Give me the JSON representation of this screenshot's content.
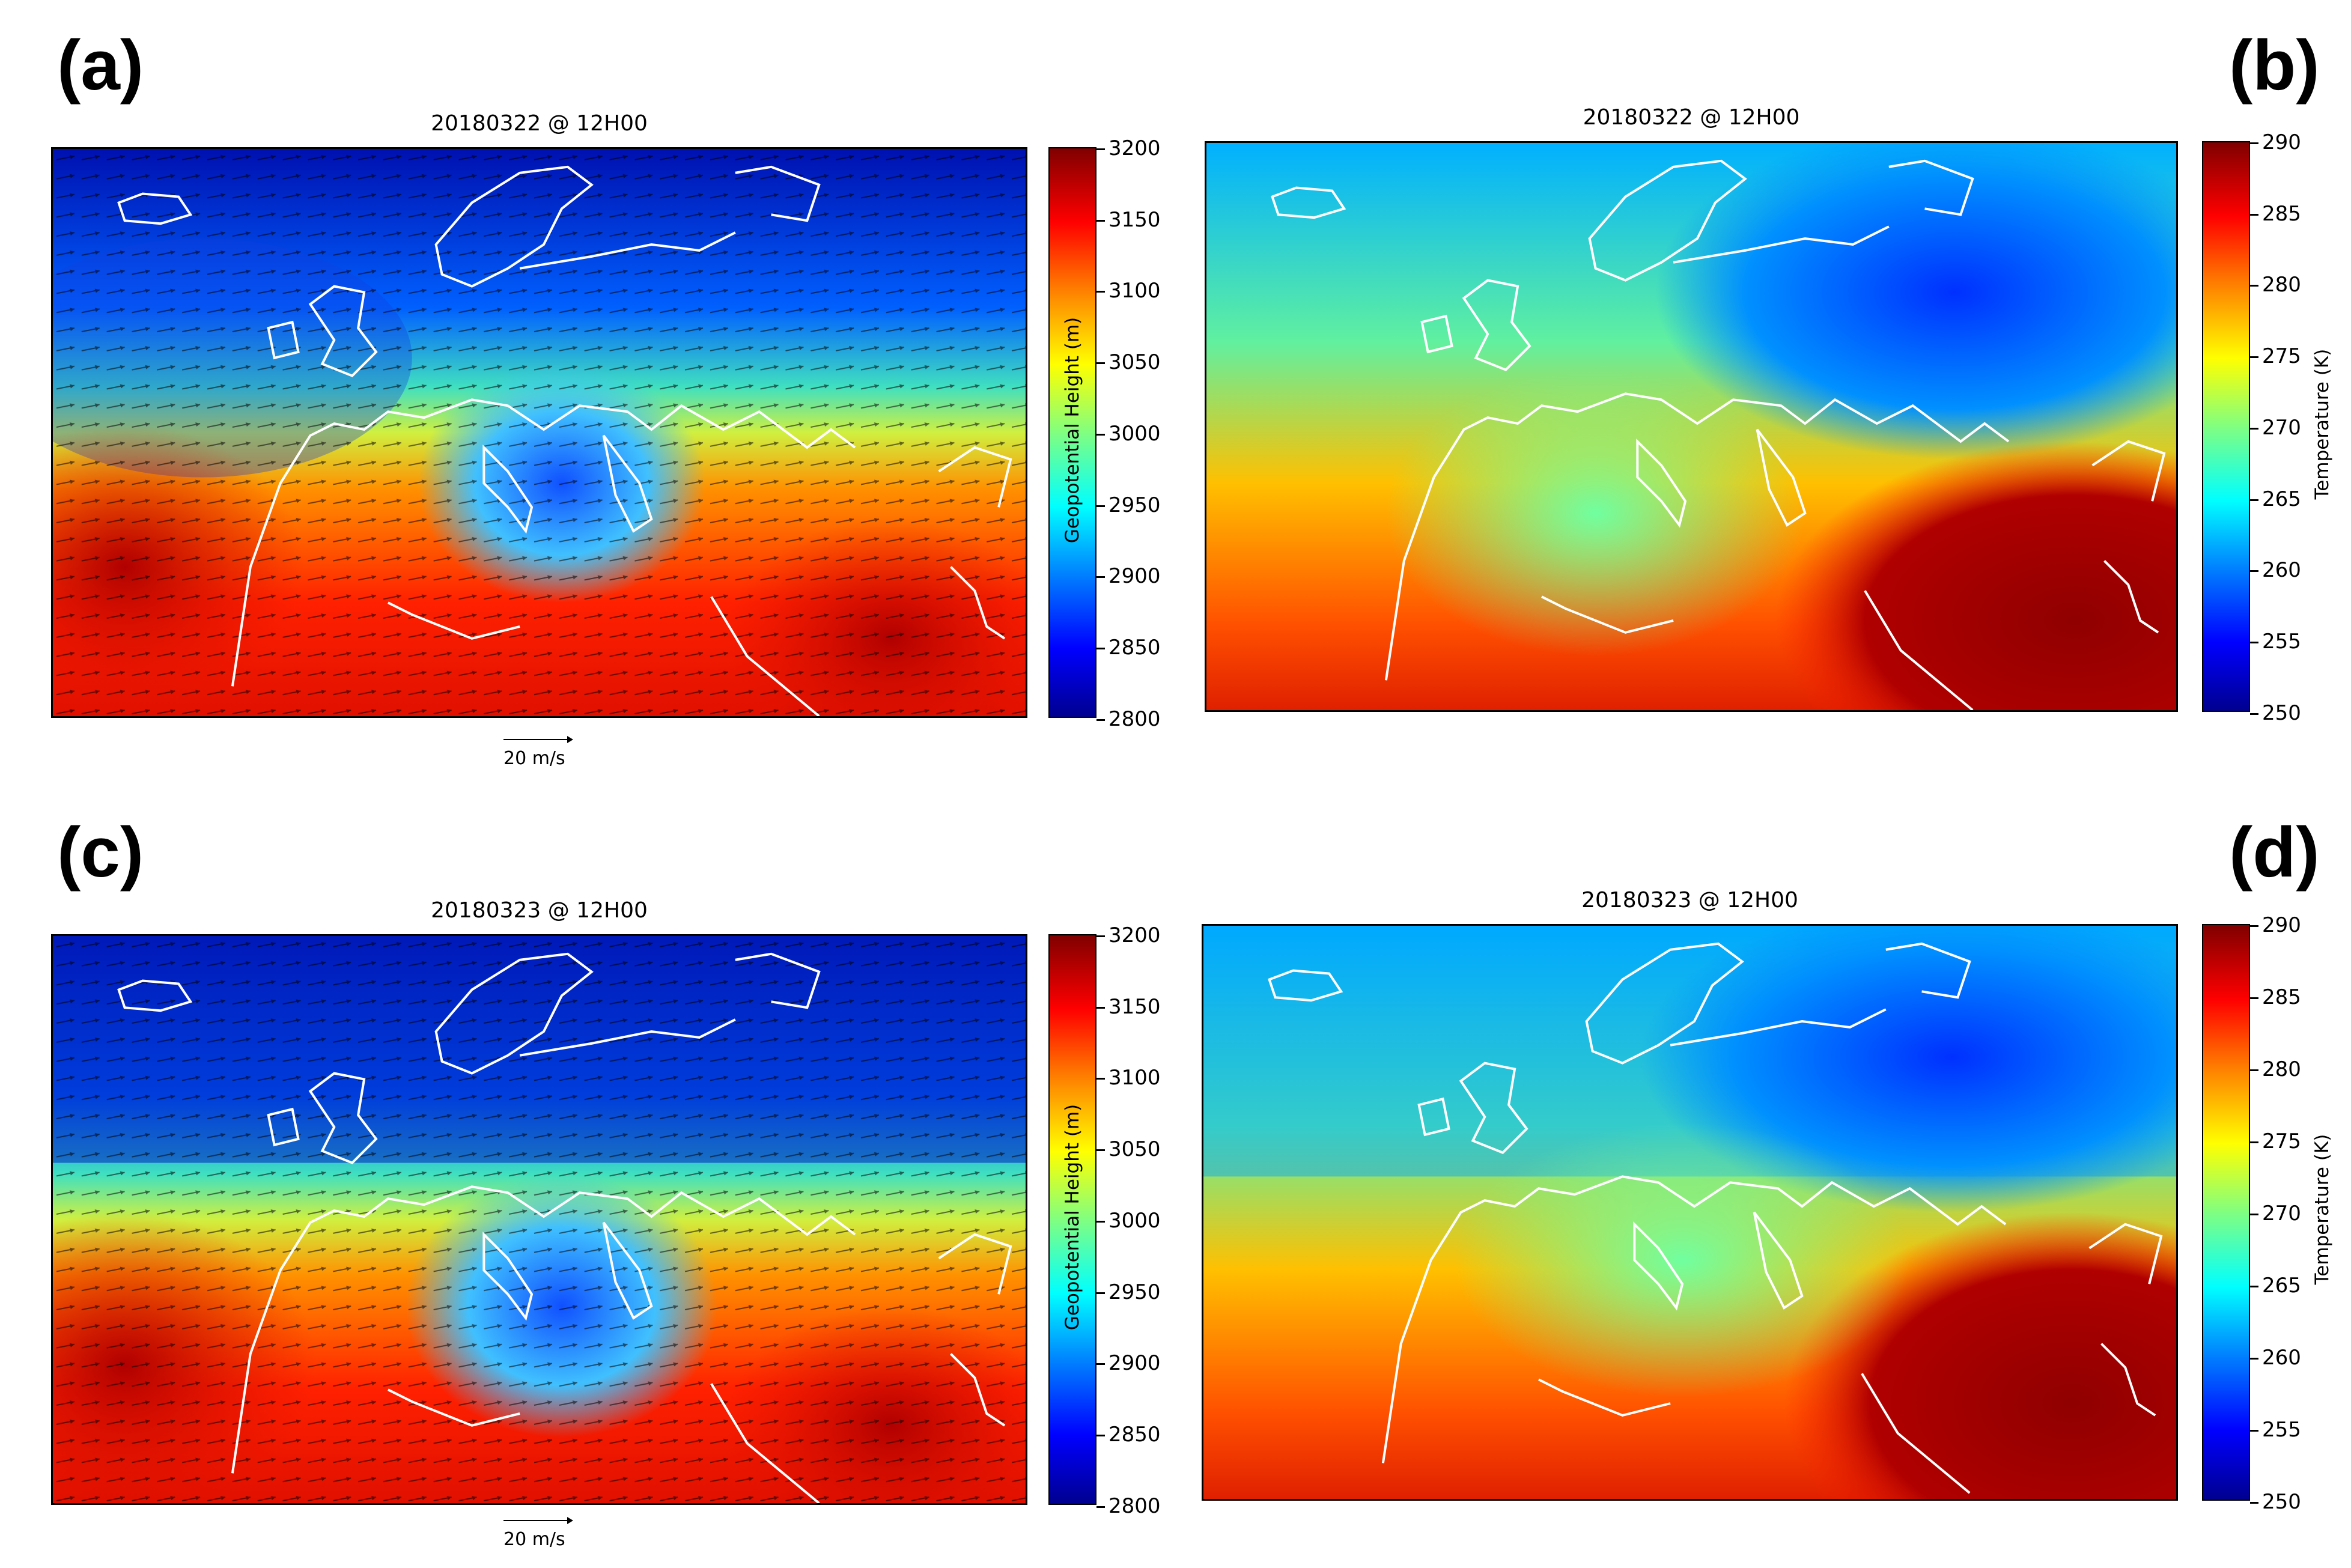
{
  "panels": [
    {
      "letter": "(a)",
      "title": "20180322 @ 12H00",
      "variable": "geopotential",
      "colorbar": {
        "label": "Geopotential Height (m)",
        "ticks": [
          "3200",
          "3150",
          "3100",
          "3050",
          "3000",
          "2950",
          "2900",
          "2850",
          "2800"
        ],
        "min": 2800,
        "max": 3200,
        "colormap": "jet"
      },
      "scale_label": "20 m/s"
    },
    {
      "letter": "(b)",
      "title": "20180322 @ 12H00",
      "variable": "temperature",
      "colorbar": {
        "label": "Temperature (K)",
        "ticks": [
          "290",
          "285",
          "280",
          "275",
          "270",
          "265",
          "260",
          "255",
          "250"
        ],
        "min": 250,
        "max": 290,
        "colormap": "jet"
      }
    },
    {
      "letter": "(c)",
      "title": "20180323 @ 12H00",
      "variable": "geopotential",
      "colorbar": {
        "label": "Geopotential Height (m)",
        "ticks": [
          "3200",
          "3150",
          "3100",
          "3050",
          "3000",
          "2950",
          "2900",
          "2850",
          "2800"
        ],
        "min": 2800,
        "max": 3200,
        "colormap": "jet"
      },
      "scale_label": "20 m/s"
    },
    {
      "letter": "(d)",
      "title": "20180323 @ 12H00",
      "variable": "temperature",
      "colorbar": {
        "label": "Temperature (K)",
        "ticks": [
          "290",
          "285",
          "280",
          "275",
          "270",
          "265",
          "260",
          "255",
          "250"
        ],
        "min": 250,
        "max": 290,
        "colormap": "jet"
      }
    }
  ],
  "colors": {
    "coastline": "#ffffff",
    "vectors": "#000000"
  }
}
